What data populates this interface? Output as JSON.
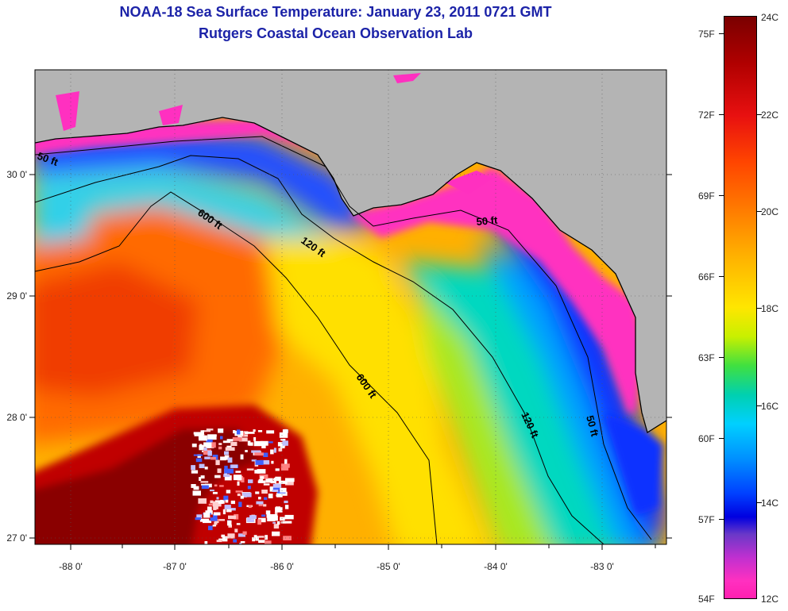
{
  "header": {
    "title": "NOAA-18 Sea Surface Temperature:  January 23, 2011 0721 GMT",
    "subtitle": "Rutgers Coastal Ocean Observation Lab"
  },
  "map": {
    "lon_labels": [
      "-88 0'",
      "-87 0'",
      "-86 0'",
      "-85 0'",
      "-84 0'",
      "-83 0'"
    ],
    "lat_labels": [
      "30 0'",
      "29 0'",
      "28 0'",
      "27 0'"
    ],
    "contour_labels": [
      "50 ft",
      "600 ft",
      "120 ft",
      "50 ft",
      "600 ft",
      "120 ft",
      "50 ft"
    ],
    "colors": {
      "land": "#b4b4b4",
      "warm": "#ff5500",
      "cold": "#ff30c0"
    }
  },
  "colorbar": {
    "fahrenheit_labels": [
      "75F",
      "72F",
      "69F",
      "66F",
      "63F",
      "60F",
      "57F",
      "54F"
    ],
    "celsius_labels": [
      "24C",
      "22C",
      "20C",
      "18C",
      "16C",
      "14C",
      "12C"
    ]
  }
}
